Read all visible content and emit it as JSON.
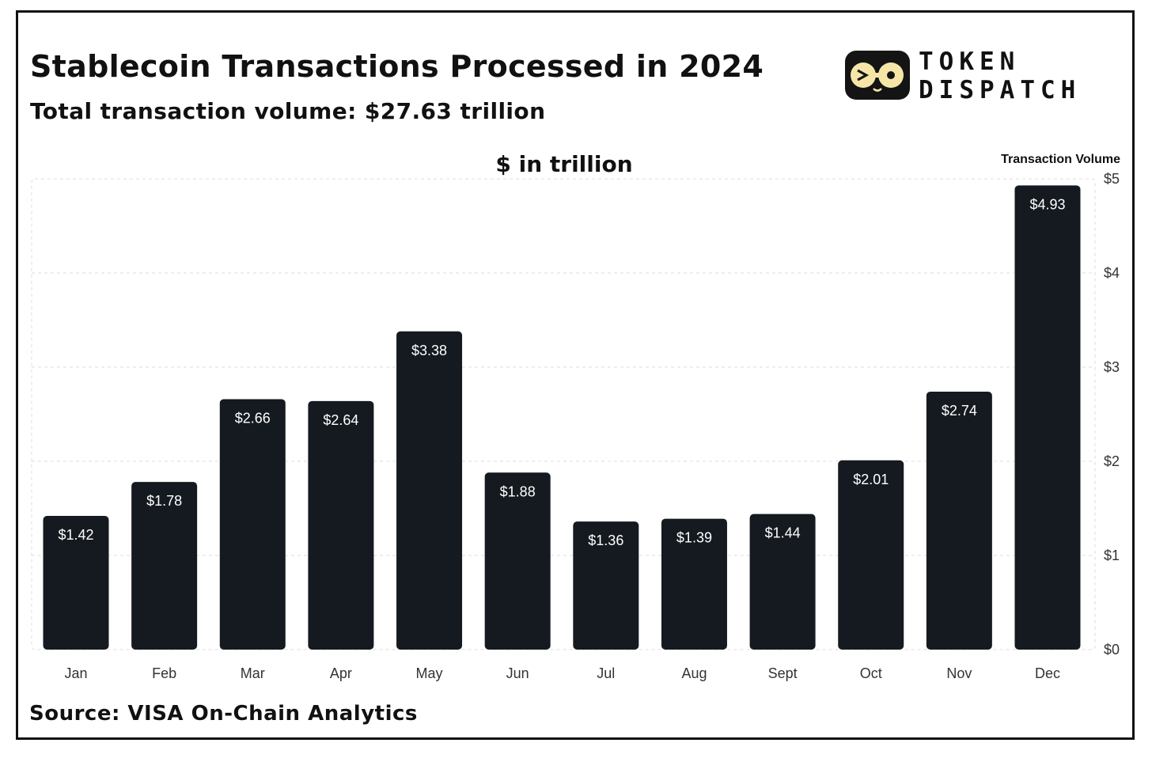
{
  "brand": {
    "name_line1": "TOKEN",
    "name_line2": "DISPATCH",
    "colors": {
      "ink": "#141414",
      "accent": "#F5E6A8"
    }
  },
  "footer": {
    "source": "Source: VISA On-Chain Analytics"
  },
  "chart_data": {
    "type": "bar",
    "title": "Stablecoin Transactions Processed in 2024",
    "subtitle": "Total transaction volume: $27.63 trillion",
    "unit_label": "$ in trillion",
    "ylabel": "Transaction Volume",
    "y_axis_position": "right",
    "ylim": [
      0,
      5
    ],
    "y_ticks": [
      0,
      1,
      2,
      3,
      4,
      5
    ],
    "y_tick_labels": [
      "$0",
      "$1",
      "$2",
      "$3",
      "$4",
      "$5"
    ],
    "grid": true,
    "bar_color": "#151a20",
    "categories": [
      "Jan",
      "Feb",
      "Mar",
      "Apr",
      "May",
      "Jun",
      "Jul",
      "Aug",
      "Sept",
      "Oct",
      "Nov",
      "Dec"
    ],
    "values": [
      1.42,
      1.78,
      2.66,
      2.64,
      3.38,
      1.88,
      1.36,
      1.39,
      1.44,
      2.01,
      2.74,
      4.93
    ],
    "value_labels": [
      "$1.42",
      "$1.78",
      "$2.66",
      "$2.64",
      "$3.38",
      "$1.88",
      "$1.36",
      "$1.39",
      "$1.44",
      "$2.01",
      "$2.74",
      "$4.93"
    ]
  }
}
